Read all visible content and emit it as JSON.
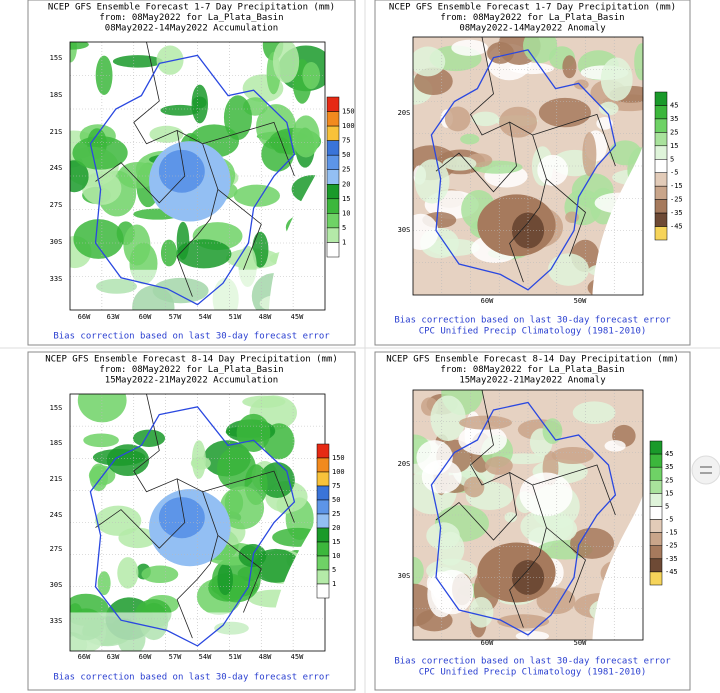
{
  "panels": [
    {
      "title": [
        "NCEP GFS Ensemble Forecast 1-7 Day Precipitation (mm)",
        "from: 08May2022  for La_Plata_Basin",
        "08May2022-14May2022 Accumulation"
      ],
      "lat_labels": [
        "15S",
        "18S",
        "21S",
        "24S",
        "27S",
        "30S",
        "33S"
      ],
      "lon_labels": [
        "66W",
        "63W",
        "60W",
        "57W",
        "54W",
        "51W",
        "48W",
        "45W"
      ],
      "colorbar": [
        "150",
        "100",
        "75",
        "50",
        "25",
        "20",
        "15",
        "10",
        "5",
        "1"
      ],
      "notes": [
        "Bias correction based on last 30-day forecast error"
      ]
    },
    {
      "title": [
        "NCEP GFS Ensemble Forecast 1-7 Day Precipitation (mm)",
        "from: 08May2022  for La_Plata_Basin",
        "08May2022-14May2022 Anomaly"
      ],
      "lat_labels": [
        "20S",
        "30S"
      ],
      "lon_labels": [
        "60W",
        "50W"
      ],
      "colorbar": [
        "45",
        "35",
        "25",
        "15",
        "5",
        "-5",
        "-15",
        "-25",
        "-35",
        "-45"
      ],
      "notes": [
        "Bias correction based on last 30-day forecast error",
        "CPC Unified Precip Climatology (1981-2010)"
      ]
    },
    {
      "title": [
        "NCEP GFS Ensemble Forecast 8-14 Day Precipitation (mm)",
        "from: 08May2022  for La_Plata_Basin",
        "15May2022-21May2022 Accumulation"
      ],
      "lat_labels": [
        "15S",
        "18S",
        "21S",
        "24S",
        "27S",
        "30S",
        "33S"
      ],
      "lon_labels": [
        "66W",
        "63W",
        "60W",
        "57W",
        "54W",
        "51W",
        "48W",
        "45W"
      ],
      "colorbar": [
        "150",
        "100",
        "75",
        "50",
        "25",
        "20",
        "15",
        "10",
        "5",
        "1"
      ],
      "notes": [
        "Bias correction based on last 30-day forecast error"
      ]
    },
    {
      "title": [
        "NCEP GFS Ensemble Forecast 8-14 Day Precipitation (mm)",
        "from: 08May2022  for La_Plata_Basin",
        "15May2022-21May2022 Anomaly"
      ],
      "lat_labels": [
        "20S",
        "30S"
      ],
      "lon_labels": [
        "60W",
        "50W"
      ],
      "colorbar": [
        "45",
        "35",
        "25",
        "15",
        "5",
        "-5",
        "-15",
        "-25",
        "-35",
        "-45"
      ],
      "notes": [
        "Bias correction based on last 30-day forecast error",
        "CPC Unified Precip Climatology (1981-2010)"
      ]
    }
  ]
}
